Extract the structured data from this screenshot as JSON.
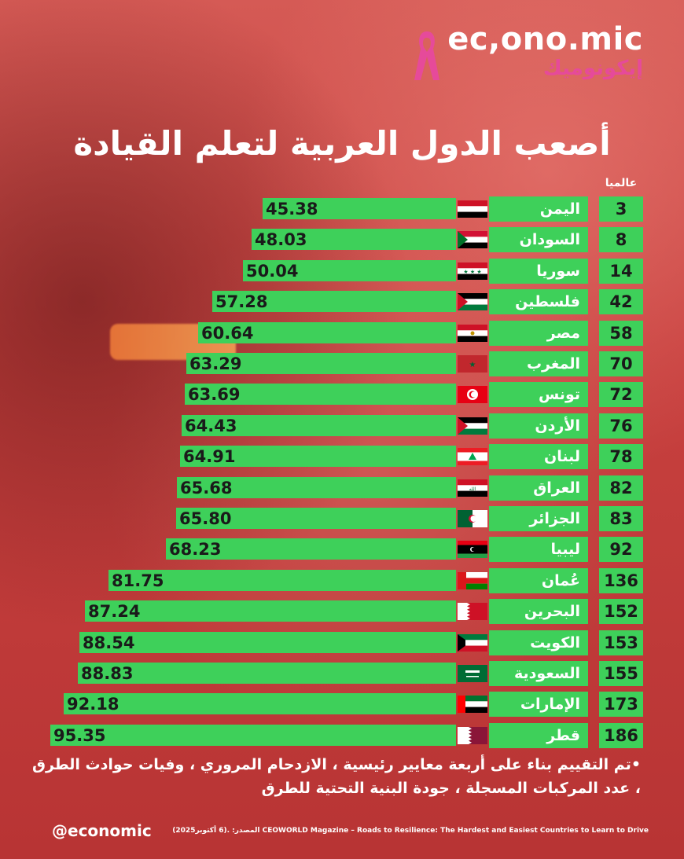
{
  "brand": {
    "name_en": "ec,ono.mic",
    "name_ar": "إيكونوميك",
    "ribbon_color": "#e64a9a"
  },
  "title": "أصعب الدول العربية لتعلم القيادة",
  "rank_header": "عالميا",
  "chart_data": {
    "type": "bar",
    "orientation": "horizontal",
    "bar_color": "#3ed05a",
    "title": "أصعب الدول العربية لتعلم القيادة",
    "rows": [
      {
        "country": "اليمن",
        "rank": "3",
        "value": 45.38,
        "label": "45.38",
        "flag": "yemen"
      },
      {
        "country": "السودان",
        "rank": "8",
        "value": 48.03,
        "label": "48.03",
        "flag": "sudan"
      },
      {
        "country": "سوريا",
        "rank": "14",
        "value": 50.04,
        "label": "50.04",
        "flag": "syria"
      },
      {
        "country": "فلسطين",
        "rank": "42",
        "value": 57.28,
        "label": "57.28",
        "flag": "palestine"
      },
      {
        "country": "مصر",
        "rank": "58",
        "value": 60.64,
        "label": "60.64",
        "flag": "egypt"
      },
      {
        "country": "المغرب",
        "rank": "70",
        "value": 63.29,
        "label": "63.29",
        "flag": "morocco"
      },
      {
        "country": "تونس",
        "rank": "72",
        "value": 63.69,
        "label": "63.69",
        "flag": "tunisia"
      },
      {
        "country": "الأردن",
        "rank": "76",
        "value": 64.43,
        "label": "64.43",
        "flag": "jordan"
      },
      {
        "country": "لبنان",
        "rank": "78",
        "value": 64.91,
        "label": "64.91",
        "flag": "lebanon"
      },
      {
        "country": "العراق",
        "rank": "82",
        "value": 65.68,
        "label": "65.68",
        "flag": "iraq"
      },
      {
        "country": "الجزائر",
        "rank": "83",
        "value": 65.8,
        "label": "65.80",
        "flag": "algeria"
      },
      {
        "country": "ليبيا",
        "rank": "92",
        "value": 68.23,
        "label": "68.23",
        "flag": "libya"
      },
      {
        "country": "عُمان",
        "rank": "136",
        "value": 81.75,
        "label": "81.75",
        "flag": "oman"
      },
      {
        "country": "البحرين",
        "rank": "152",
        "value": 87.24,
        "label": "87.24",
        "flag": "bahrain"
      },
      {
        "country": "الكويت",
        "rank": "153",
        "value": 88.54,
        "label": "88.54",
        "flag": "kuwait"
      },
      {
        "country": "السعودية",
        "rank": "155",
        "value": 88.83,
        "label": "88.83",
        "flag": "saudi"
      },
      {
        "country": "الإمارات",
        "rank": "173",
        "value": 92.18,
        "label": "92.18",
        "flag": "uae"
      },
      {
        "country": "قطر",
        "rank": "186",
        "value": 95.35,
        "label": "95.35",
        "flag": "qatar"
      }
    ]
  },
  "note": "•تم التقييم بناء على أربعة معايير رئيسية ، الازدحام المروري ، وفيات حوادث الطرق ، عدد المركبات المسجلة ، جودة البنية التحتية للطرق",
  "handle": "@economic",
  "source": "المصدر: .(6 أكتوبر2025) CEOWORLD Magazine – Roads to Resilience: The Hardest and Easiest Countries to Learn to Drive"
}
